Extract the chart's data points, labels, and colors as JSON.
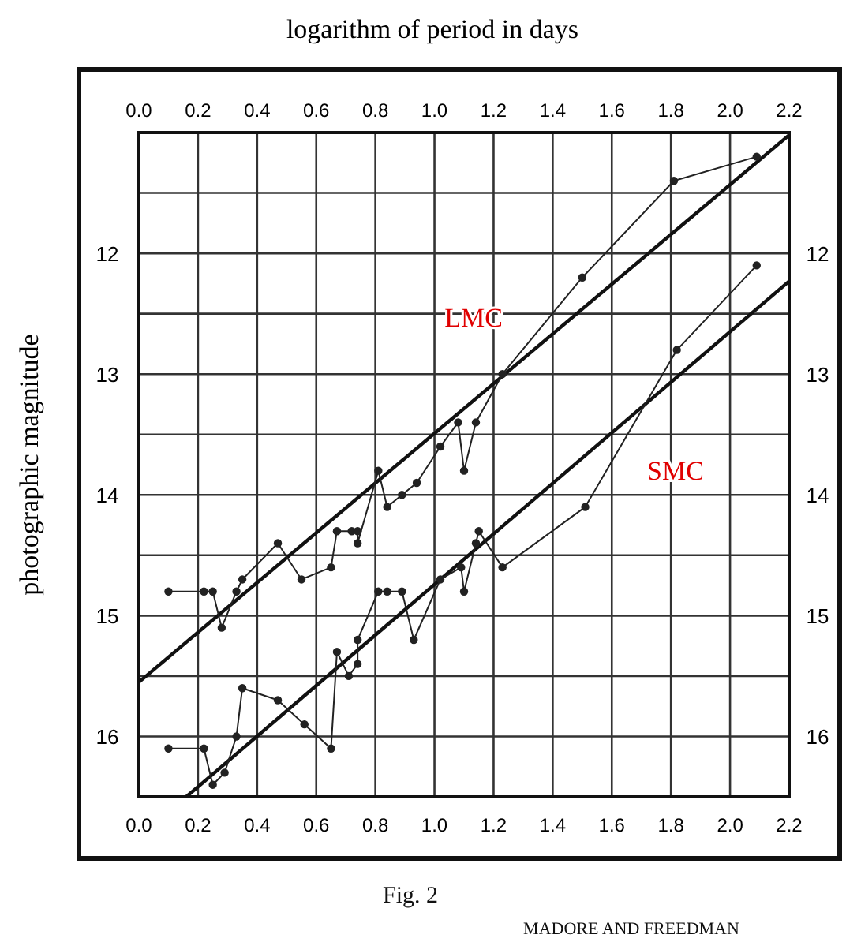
{
  "chart_data": {
    "type": "line",
    "x2label": "logarithm of period in days",
    "ylabel": "photographic magnitude",
    "xlim": [
      0,
      2.2
    ],
    "xticks": [
      {
        "value": 0,
        "label": "0.0"
      },
      0.2,
      0.4,
      0.6,
      0.8,
      {
        "value": 1,
        "label": "1.0"
      },
      1.2,
      1.4,
      1.6,
      1.8,
      {
        "value": 2,
        "label": "2.0"
      },
      2.2
    ],
    "x2lim": [
      0,
      2.2
    ],
    "x2ticks": [
      {
        "value": 0,
        "label": "0.0"
      },
      0.2,
      0.4,
      0.6,
      0.8,
      {
        "value": 1,
        "label": "1.0"
      },
      1.2,
      1.4,
      1.6,
      1.8,
      {
        "value": 2,
        "label": "2.0"
      },
      2.2
    ],
    "ylim": [
      16.5,
      11.0
    ],
    "yticks": [
      {
        "value": 11.5,
        "label": null
      },
      12,
      {
        "value": 12.5,
        "label": null
      },
      13,
      {
        "value": 13.5,
        "label": null
      },
      14,
      {
        "value": 14.5,
        "label": null
      },
      15,
      {
        "value": 15.5,
        "label": null
      },
      16
    ],
    "y2lim": [
      16.5,
      11.0
    ],
    "y2ticks": [
      12,
      13,
      14,
      15,
      16
    ],
    "grid": true,
    "series": [
      {
        "color": "#222222",
        "marker": "circle",
        "x": [
          0.1,
          0.22,
          0.25,
          0.28,
          0.33,
          0.35,
          0.47,
          0.55,
          0.65,
          0.67,
          0.72,
          0.74,
          0.74,
          0.81,
          0.84,
          0.89,
          0.94,
          1.02,
          1.08,
          1.1,
          1.14,
          1.23,
          1.5,
          1.81,
          2.09
        ],
        "values": [
          14.8,
          14.8,
          14.8,
          15.1,
          14.8,
          14.7,
          14.4,
          14.7,
          14.6,
          14.3,
          14.3,
          14.3,
          14.4,
          13.8,
          14.1,
          14.0,
          13.9,
          13.6,
          13.4,
          13.8,
          13.4,
          13.0,
          12.2,
          11.4,
          11.2
        ]
      },
      {
        "color": "#222222",
        "marker": "circle",
        "x": [
          0.1,
          0.22,
          0.25,
          0.29,
          0.33,
          0.35,
          0.47,
          0.56,
          0.65,
          0.67,
          0.71,
          0.74,
          0.74,
          0.81,
          0.84,
          0.89,
          0.93,
          1.02,
          1.09,
          1.1,
          1.14,
          1.15,
          1.23,
          1.51,
          1.82,
          2.09
        ],
        "values": [
          16.1,
          16.1,
          16.4,
          16.3,
          16.0,
          15.6,
          15.7,
          15.9,
          16.1,
          15.3,
          15.5,
          15.4,
          15.2,
          14.8,
          14.8,
          14.8,
          15.2,
          14.7,
          14.6,
          14.8,
          14.4,
          14.3,
          14.6,
          14.1,
          12.8,
          12.1
        ]
      },
      {
        "color": "#111111",
        "marker": "none",
        "x": [
          0,
          2.2
        ],
        "values": [
          15.55,
          11.02
        ]
      },
      {
        "color": "#111111",
        "marker": "none",
        "x": [
          0.16,
          2.2
        ],
        "values": [
          16.5,
          12.23
        ]
      }
    ],
    "annotations": [
      "LMC",
      "SMC",
      "Fig. 2",
      "MADORE AND FREEDMAN"
    ]
  }
}
